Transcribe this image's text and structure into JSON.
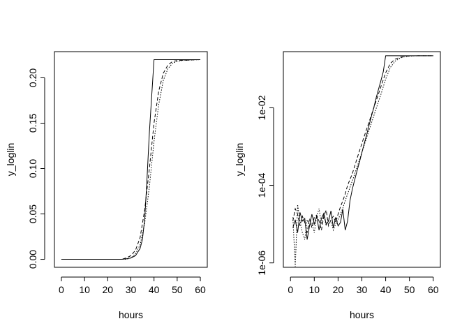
{
  "chart_data": [
    {
      "type": "line",
      "title": "",
      "xlabel": "hours",
      "ylabel": "y_loglin",
      "xlim": [
        -3,
        63
      ],
      "ylim": [
        -0.0088,
        0.2288
      ],
      "x_ticks": [
        0,
        10,
        20,
        30,
        40,
        50,
        60
      ],
      "x_tick_labels": [
        "0",
        "10",
        "20",
        "30",
        "40",
        "50",
        "60"
      ],
      "y_ticks": [
        0,
        0.05,
        0.1,
        0.15,
        0.2
      ],
      "y_tick_labels": [
        "0.00",
        "0.05",
        "0.10",
        "0.15",
        "0.20"
      ],
      "y_scale": "linear",
      "grid": false,
      "series": [
        {
          "line_style": "solid",
          "x": [
            0,
            26,
            28,
            30,
            32,
            34,
            35,
            36,
            37,
            38,
            39,
            40,
            60
          ],
          "y": [
            0,
            0,
            0.0005,
            0.0015,
            0.004,
            0.012,
            0.022,
            0.045,
            0.09,
            0.14,
            0.18,
            0.22,
            0.22
          ]
        },
        {
          "line_style": "dashed",
          "x": [
            0,
            26,
            28,
            30,
            32,
            34,
            36,
            38,
            40,
            42,
            44,
            46,
            48,
            50,
            60
          ],
          "y": [
            0,
            0,
            0.0015,
            0.004,
            0.01,
            0.024,
            0.055,
            0.1,
            0.15,
            0.185,
            0.205,
            0.214,
            0.218,
            0.219,
            0.22
          ]
        },
        {
          "line_style": "dotted",
          "x": [
            0,
            28,
            30,
            32,
            34,
            36,
            38,
            40,
            42,
            44,
            46,
            48,
            50,
            52,
            60
          ],
          "y": [
            0,
            0,
            0.0015,
            0.006,
            0.016,
            0.04,
            0.08,
            0.13,
            0.17,
            0.197,
            0.21,
            0.216,
            0.218,
            0.219,
            0.22
          ]
        }
      ]
    },
    {
      "type": "line",
      "title": "",
      "xlabel": "hours",
      "ylabel": "y_loglin",
      "xlim": [
        -3,
        63
      ],
      "ylim": [
        7.7e-07,
        0.28
      ],
      "x_ticks": [
        0,
        10,
        20,
        30,
        40,
        50,
        60
      ],
      "x_tick_labels": [
        "0",
        "10",
        "20",
        "30",
        "40",
        "50",
        "60"
      ],
      "y_ticks": [
        1e-06,
        0.0001,
        0.01
      ],
      "y_tick_labels": [
        "1e-06",
        "1e-04",
        "1e-02"
      ],
      "y_scale": "log",
      "grid": false,
      "series": [
        {
          "line_style": "solid",
          "x": [
            1,
            2,
            3,
            4,
            5,
            6,
            7,
            8,
            9,
            10,
            11,
            12,
            13,
            14,
            15,
            16,
            17,
            18,
            19,
            20,
            21,
            22,
            23,
            24,
            25,
            26,
            27,
            28,
            29,
            30,
            31,
            32,
            33,
            34,
            35,
            36,
            37,
            38,
            39,
            40,
            45,
            50,
            55,
            60
          ],
          "y": [
            8e-06,
            1.3e-05,
            6e-06,
            2e-05,
            1.2e-05,
            1.4e-05,
            4e-06,
            9e-06,
            1.8e-05,
            1e-05,
            1.6e-05,
            7e-06,
            1.4e-05,
            1.9e-05,
            1e-05,
            1.2e-05,
            2.2e-05,
            8e-06,
            1.5e-05,
            9e-06,
            1.1e-05,
            2.4e-05,
            7e-06,
            1.2e-05,
            4e-05,
            8e-05,
            0.00014,
            0.00024,
            0.0004,
            0.0007,
            0.0012,
            0.002,
            0.0035,
            0.006,
            0.01,
            0.018,
            0.03,
            0.05,
            0.085,
            0.22,
            0.22,
            0.22,
            0.22,
            0.22
          ]
        },
        {
          "line_style": "dashed",
          "x": [
            1,
            2,
            3,
            4,
            5,
            6,
            7,
            8,
            9,
            10,
            11,
            12,
            13,
            14,
            15,
            16,
            17,
            18,
            19,
            20,
            21,
            22,
            23,
            24,
            26,
            28,
            30,
            32,
            34,
            36,
            38,
            40,
            42,
            44,
            46,
            48,
            50,
            55,
            60
          ],
          "y": [
            1.2e-05,
            2.5e-05,
            1.8e-05,
            9e-06,
            1.6e-05,
            1.1e-05,
            6e-06,
            1.4e-05,
            8e-06,
            1.5e-05,
            1.7e-05,
            1.2e-05,
            7e-06,
            1.6e-05,
            2.3e-05,
            9e-06,
            1.3e-05,
            1.6e-05,
            1.1e-05,
            1.8e-05,
            2.8e-05,
            4e-05,
            6e-05,
            0.0001,
            0.0002,
            0.0005,
            0.0012,
            0.0028,
            0.0065,
            0.015,
            0.035,
            0.08,
            0.14,
            0.18,
            0.2,
            0.212,
            0.218,
            0.22,
            0.22
          ]
        },
        {
          "line_style": "dotted",
          "x": [
            1,
            2,
            3,
            4,
            5,
            6,
            7,
            8,
            9,
            10,
            11,
            12,
            13,
            14,
            15,
            16,
            17,
            18,
            19,
            20,
            21,
            22,
            23,
            24,
            26,
            28,
            30,
            32,
            34,
            36,
            38,
            40,
            42,
            44,
            46,
            48,
            50,
            52,
            55,
            60
          ],
          "y": [
            1.5e-05,
            8e-07,
            3.2e-05,
            1.2e-05,
            6e-06,
            4e-06,
            1.3e-05,
            9e-06,
            1.1e-05,
            6e-06,
            1.6e-05,
            2.5e-05,
            1e-05,
            1.8e-05,
            9e-06,
            1.4e-05,
            1.2e-05,
            7e-06,
            1e-05,
            1.3e-05,
            1.8e-05,
            2.6e-05,
            4e-05,
            6e-05,
            0.00013,
            0.0003,
            0.0007,
            0.0017,
            0.004,
            0.0095,
            0.022,
            0.055,
            0.11,
            0.16,
            0.19,
            0.207,
            0.214,
            0.218,
            0.22,
            0.22
          ]
        }
      ]
    }
  ]
}
